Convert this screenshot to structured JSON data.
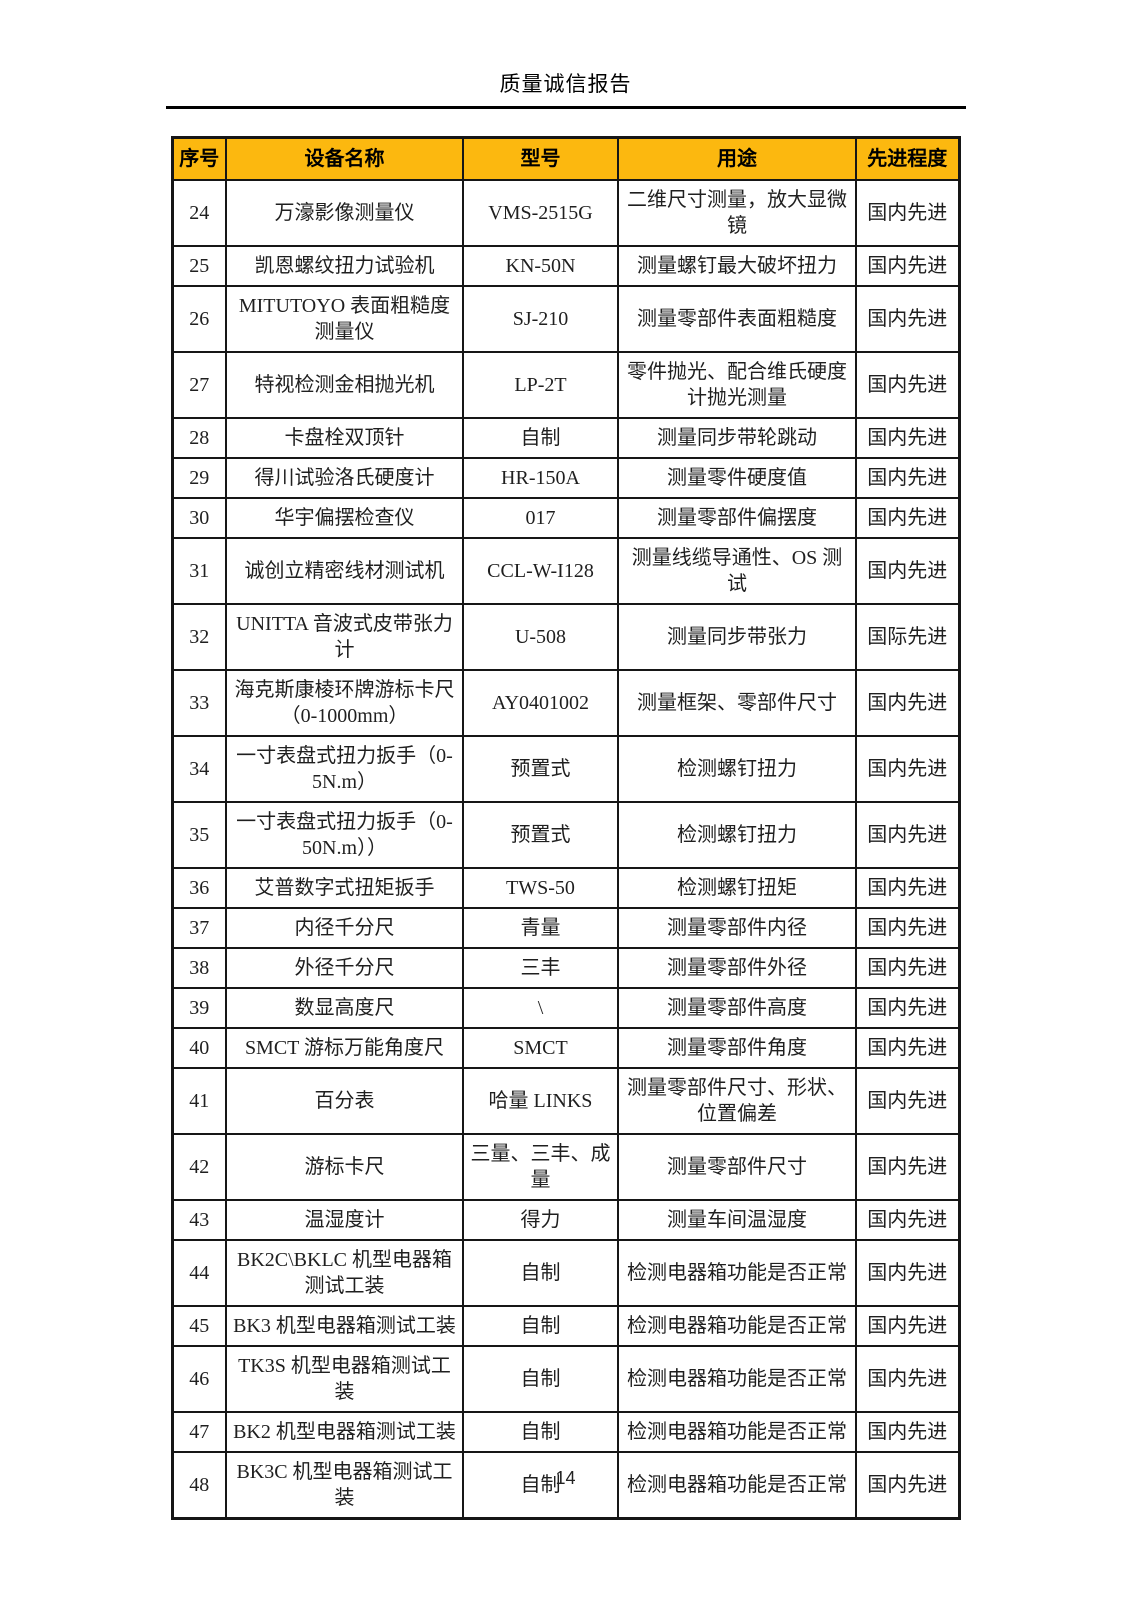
{
  "header": {
    "title": "质量诚信报告"
  },
  "footer": {
    "page_number": "14"
  },
  "colors": {
    "table_header_bg": "#FCB80F",
    "table_border": "#161616",
    "text": "#1F1F1F"
  },
  "table": {
    "headers": [
      "序号",
      "设备名称",
      "型号",
      "用途",
      "先进程度"
    ],
    "rows": [
      {
        "no": "24",
        "name": "万濠影像测量仪",
        "model": "VMS-2515G",
        "purpose": "二维尺寸测量，放大显微镜",
        "level": "国内先进"
      },
      {
        "no": "25",
        "name": "凯恩螺纹扭力试验机",
        "model": "KN-50N",
        "purpose": "测量螺钉最大破坏扭力",
        "level": "国内先进"
      },
      {
        "no": "26",
        "name": "MITUTOYO 表面粗糙度测量仪",
        "model": "SJ-210",
        "purpose": "测量零部件表面粗糙度",
        "level": "国内先进"
      },
      {
        "no": "27",
        "name": "特视检测金相抛光机",
        "model": "LP-2T",
        "purpose": "零件抛光、配合维氏硬度计抛光测量",
        "level": "国内先进"
      },
      {
        "no": "28",
        "name": "卡盘栓双顶针",
        "model": "自制",
        "purpose": "测量同步带轮跳动",
        "level": "国内先进"
      },
      {
        "no": "29",
        "name": "得川试验洛氏硬度计",
        "model": "HR-150A",
        "purpose": "测量零件硬度值",
        "level": "国内先进"
      },
      {
        "no": "30",
        "name": "华宇偏摆检查仪",
        "model": "017",
        "purpose": "测量零部件偏摆度",
        "level": "国内先进"
      },
      {
        "no": "31",
        "name": "诚创立精密线材测试机",
        "model": "CCL-W-I128",
        "purpose": "测量线缆导通性、OS 测试",
        "level": "国内先进"
      },
      {
        "no": "32",
        "name": "UNITTA 音波式皮带张力计",
        "model": "U-508",
        "purpose": "测量同步带张力",
        "level": "国际先进"
      },
      {
        "no": "33",
        "name": "海克斯康棱环牌游标卡尺（0-1000mm）",
        "model": "AY0401002",
        "purpose": "测量框架、零部件尺寸",
        "level": "国内先进"
      },
      {
        "no": "34",
        "name": "一寸表盘式扭力扳手（0-5N.m）",
        "model": "预置式",
        "purpose": "检测螺钉扭力",
        "level": "国内先进"
      },
      {
        "no": "35",
        "name": "一寸表盘式扭力扳手（0-50N.m））",
        "model": "预置式",
        "purpose": "检测螺钉扭力",
        "level": "国内先进"
      },
      {
        "no": "36",
        "name": "艾普数字式扭矩扳手",
        "model": "TWS-50",
        "purpose": "检测螺钉扭矩",
        "level": "国内先进"
      },
      {
        "no": "37",
        "name": "内径千分尺",
        "model": "青量",
        "purpose": "测量零部件内径",
        "level": "国内先进"
      },
      {
        "no": "38",
        "name": "外径千分尺",
        "model": "三丰",
        "purpose": "测量零部件外径",
        "level": "国内先进"
      },
      {
        "no": "39",
        "name": "数显高度尺",
        "model": "\\",
        "purpose": "测量零部件高度",
        "level": "国内先进"
      },
      {
        "no": "40",
        "name": "SMCT 游标万能角度尺",
        "model": "SMCT",
        "purpose": "测量零部件角度",
        "level": "国内先进"
      },
      {
        "no": "41",
        "name": "百分表",
        "model": "哈量 LINKS",
        "purpose": "测量零部件尺寸、形状、位置偏差",
        "level": "国内先进"
      },
      {
        "no": "42",
        "name": "游标卡尺",
        "model": "三量、三丰、成量",
        "purpose": "测量零部件尺寸",
        "level": "国内先进"
      },
      {
        "no": "43",
        "name": "温湿度计",
        "model": "得力",
        "purpose": "测量车间温湿度",
        "level": "国内先进"
      },
      {
        "no": "44",
        "name": "BK2C\\BKLC 机型电器箱测试工装",
        "model": "自制",
        "purpose": "检测电器箱功能是否正常",
        "level": "国内先进"
      },
      {
        "no": "45",
        "name": "BK3 机型电器箱测试工装",
        "model": "自制",
        "purpose": "检测电器箱功能是否正常",
        "level": "国内先进"
      },
      {
        "no": "46",
        "name": "TK3S 机型电器箱测试工装",
        "model": "自制",
        "purpose": "检测电器箱功能是否正常",
        "level": "国内先进"
      },
      {
        "no": "47",
        "name": "BK2 机型电器箱测试工装",
        "model": "自制",
        "purpose": "检测电器箱功能是否正常",
        "level": "国内先进"
      },
      {
        "no": "48",
        "name": "BK3C 机型电器箱测试工装",
        "model": "自制",
        "purpose": "检测电器箱功能是否正常",
        "level": "国内先进"
      }
    ]
  }
}
